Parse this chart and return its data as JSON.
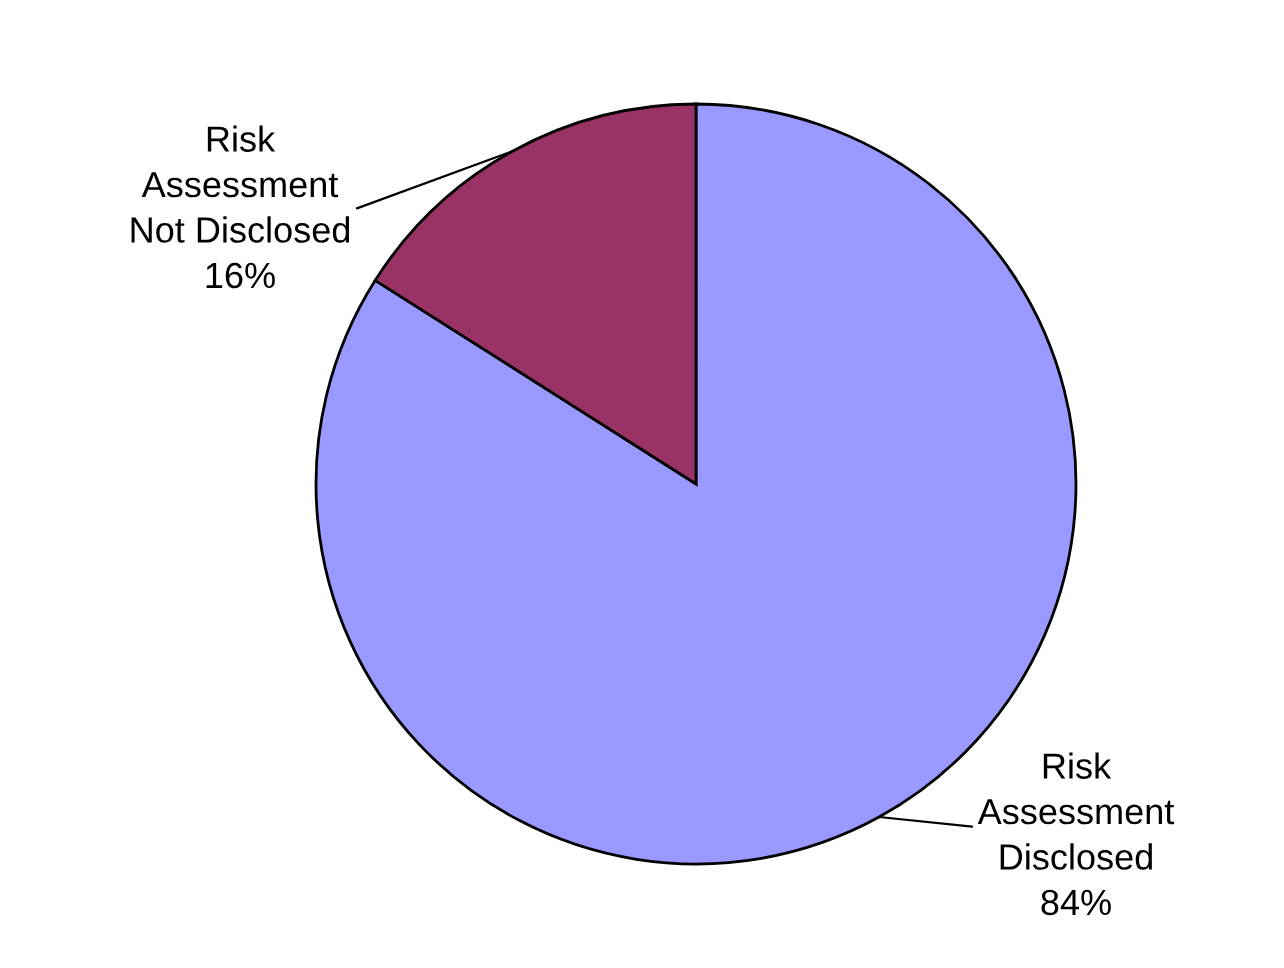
{
  "chart_data": {
    "type": "pie",
    "categories": [
      "Risk Assessment Disclosed",
      "Risk Assessment Not Disclosed"
    ],
    "values": [
      84,
      16
    ],
    "colors": [
      "#9999ff",
      "#993366"
    ],
    "value_labels": [
      "84%",
      "16%"
    ]
  }
}
